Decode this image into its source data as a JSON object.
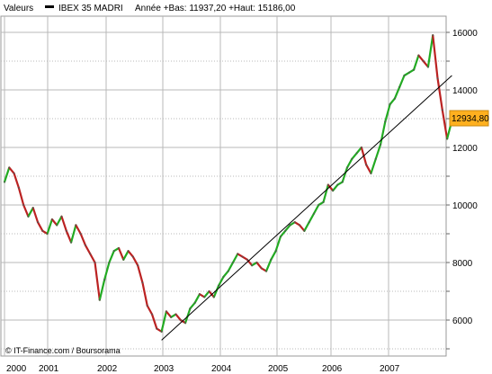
{
  "header": {
    "label": "Valeurs",
    "instrument": "IBEX 35 MADRI",
    "stats": "Année +Bas: 11937,20 +Haut: 15186,00"
  },
  "last_price_label": "12934,80",
  "credit": "© IT-Finance.com / Boursorama",
  "colors": {
    "up_candle": "#22aa22",
    "down_candle": "#bb2222",
    "trendline": "#000000",
    "grid": "#b8b8b8",
    "price_box": "#ffb01f"
  },
  "chart_data": {
    "type": "line",
    "title": "",
    "xlabel": "",
    "ylabel": "",
    "x_ticks": [
      "2000",
      "2001",
      "2002",
      "2003",
      "2004",
      "2005",
      "2006",
      "2007"
    ],
    "y_ticks": [
      "6000",
      "8000",
      "10000",
      "12000",
      "14000",
      "16000"
    ],
    "xlim": [
      "2000-01",
      "2007-11"
    ],
    "ylim": [
      4800,
      16600
    ],
    "grid": true,
    "series": [
      {
        "points": [
          [
            "2000-01",
            10800
          ],
          [
            "2000-02",
            11300
          ],
          [
            "2000-03",
            11100
          ],
          [
            "2000-04",
            10600
          ],
          [
            "2000-05",
            10000
          ],
          [
            "2000-06",
            9600
          ],
          [
            "2000-07",
            9900
          ],
          [
            "2000-08",
            9400
          ],
          [
            "2000-09",
            9100
          ],
          [
            "2000-10",
            9000
          ],
          [
            "2000-11",
            9500
          ],
          [
            "2000-12",
            9300
          ],
          [
            "2001-01",
            9600
          ],
          [
            "2001-02",
            9100
          ],
          [
            "2001-03",
            8700
          ],
          [
            "2001-04",
            9300
          ],
          [
            "2001-05",
            9000
          ],
          [
            "2001-06",
            8600
          ],
          [
            "2001-07",
            8300
          ],
          [
            "2001-08",
            8000
          ],
          [
            "2001-09",
            6700
          ],
          [
            "2001-10",
            7400
          ],
          [
            "2001-11",
            8000
          ],
          [
            "2001-12",
            8400
          ],
          [
            "2002-01",
            8500
          ],
          [
            "2002-02",
            8100
          ],
          [
            "2002-03",
            8400
          ],
          [
            "2002-04",
            8200
          ],
          [
            "2002-05",
            7900
          ],
          [
            "2002-06",
            7300
          ],
          [
            "2002-07",
            6500
          ],
          [
            "2002-08",
            6200
          ],
          [
            "2002-09",
            5700
          ],
          [
            "2002-10",
            5600
          ],
          [
            "2002-11",
            6300
          ],
          [
            "2002-12",
            6100
          ],
          [
            "2003-01",
            6200
          ],
          [
            "2003-02",
            6000
          ],
          [
            "2003-03",
            5900
          ],
          [
            "2003-04",
            6400
          ],
          [
            "2003-05",
            6600
          ],
          [
            "2003-06",
            6900
          ],
          [
            "2003-07",
            6800
          ],
          [
            "2003-08",
            7000
          ],
          [
            "2003-09",
            6800
          ],
          [
            "2003-10",
            7200
          ],
          [
            "2003-11",
            7500
          ],
          [
            "2003-12",
            7700
          ],
          [
            "2004-01",
            8000
          ],
          [
            "2004-02",
            8300
          ],
          [
            "2004-03",
            8200
          ],
          [
            "2004-04",
            8100
          ],
          [
            "2004-05",
            7900
          ],
          [
            "2004-06",
            8000
          ],
          [
            "2004-07",
            7800
          ],
          [
            "2004-08",
            7700
          ],
          [
            "2004-09",
            8100
          ],
          [
            "2004-10",
            8400
          ],
          [
            "2004-11",
            8900
          ],
          [
            "2004-12",
            9100
          ],
          [
            "2005-01",
            9300
          ],
          [
            "2005-02",
            9400
          ],
          [
            "2005-03",
            9300
          ],
          [
            "2005-04",
            9100
          ],
          [
            "2005-05",
            9400
          ],
          [
            "2005-06",
            9700
          ],
          [
            "2005-07",
            10000
          ],
          [
            "2005-08",
            10100
          ],
          [
            "2005-09",
            10700
          ],
          [
            "2005-10",
            10500
          ],
          [
            "2005-11",
            10700
          ],
          [
            "2005-12",
            10800
          ],
          [
            "2006-01",
            11300
          ],
          [
            "2006-02",
            11600
          ],
          [
            "2006-03",
            11800
          ],
          [
            "2006-04",
            12000
          ],
          [
            "2006-05",
            11400
          ],
          [
            "2006-06",
            11100
          ],
          [
            "2006-07",
            11600
          ],
          [
            "2006-08",
            12100
          ],
          [
            "2006-09",
            12900
          ],
          [
            "2006-10",
            13500
          ],
          [
            "2006-11",
            13700
          ],
          [
            "2006-12",
            14100
          ],
          [
            "2007-01",
            14500
          ],
          [
            "2007-02",
            14600
          ],
          [
            "2007-03",
            14700
          ],
          [
            "2007-04",
            15200
          ],
          [
            "2007-05",
            15000
          ],
          [
            "2007-06",
            14800
          ],
          [
            "2007-07",
            15900
          ],
          [
            "2007-08",
            14400
          ],
          [
            "2007-09",
            13300
          ],
          [
            "2007-10",
            12300
          ],
          [
            "2007-11",
            12934.8
          ]
        ]
      }
    ],
    "trendline": [
      [
        "2002-10",
        5300
      ],
      [
        "2007-11",
        14500
      ]
    ]
  }
}
